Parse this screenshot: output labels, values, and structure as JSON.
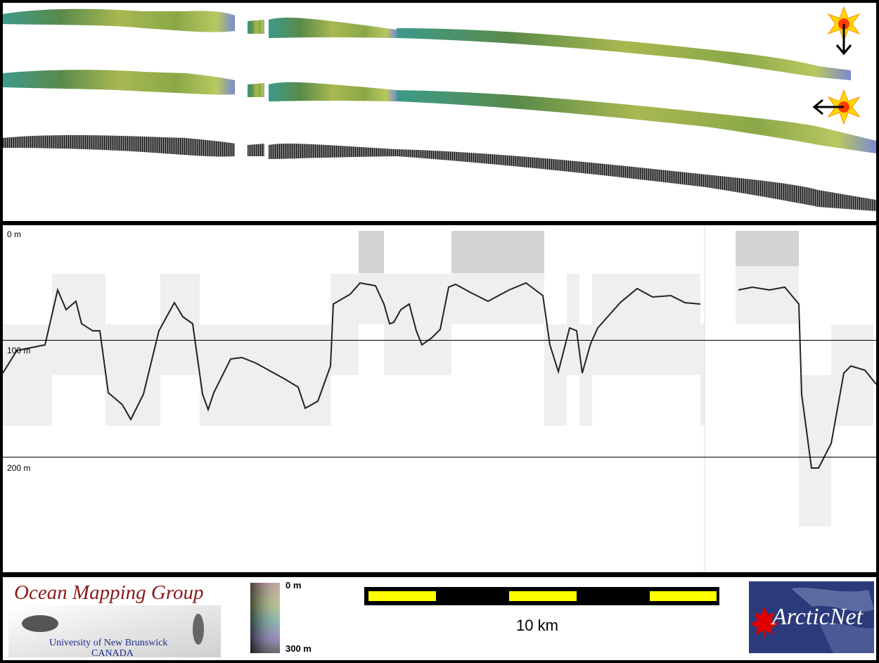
{
  "depth_axis": {
    "labels": [
      "0 m",
      "100 m",
      "200 m"
    ]
  },
  "colorbar": {
    "top_label": "0 m",
    "bottom_label": "300 m"
  },
  "scalebar": {
    "label": "10 km"
  },
  "logos": {
    "omg": {
      "title": "Ocean Mapping Group",
      "line1": "University of New Brunswick",
      "line2": "CANADA"
    },
    "arcticnet": {
      "text": "ArcticNet"
    }
  },
  "colors": {
    "frame": "#000000",
    "scalebar_accent": "#ffff00",
    "omg_title": "#8b1a1a",
    "omg_subtitle": "#1a2a8a",
    "arcticnet_bg": "#2a3a7a",
    "maple_leaf": "#e00000"
  },
  "icons": [
    "sun-illumination-icon",
    "arrow-down-icon",
    "arrow-left-icon",
    "maple-leaf-icon"
  ]
}
